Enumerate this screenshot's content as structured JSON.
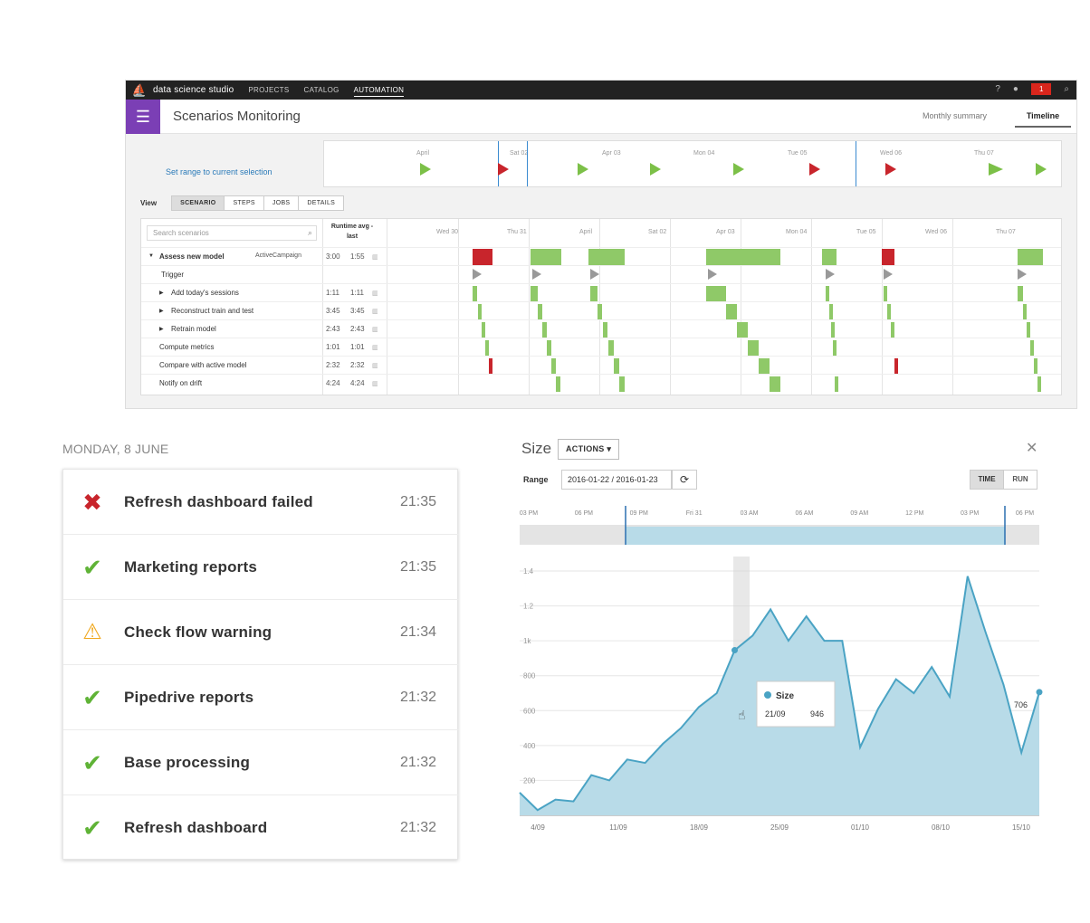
{
  "app": {
    "name": "data science studio",
    "nav": [
      "PROJECTS",
      "CATALOG",
      "AUTOMATION"
    ],
    "notification_count": "1",
    "page_title": "Scenarios Monitoring",
    "tabs": [
      "Monthly summary",
      "Timeline"
    ],
    "range_link": "Set range to current selection",
    "range_ticks": [
      "April",
      "Sat 02",
      "Apr 03",
      "Mon 04",
      "Tue 05",
      "Wed 06",
      "Thu 07"
    ],
    "view_label": "View",
    "view_buttons": [
      "SCENARIO",
      "STEPS",
      "JOBS",
      "DETAILS"
    ],
    "search_placeholder": "Search scenarios",
    "runtime_header": "Runtime avg - last",
    "grid_ticks": [
      "Wed 30",
      "Thu 31",
      "April",
      "Sat 02",
      "Apr 03",
      "Mon 04",
      "Tue 05",
      "Wed 06",
      "Thu 07"
    ],
    "rows": [
      {
        "name": "Assess new model",
        "tag": "ActiveCampaign",
        "avg": "3:00",
        "last": "1:55"
      },
      {
        "name": "Trigger",
        "tag": "",
        "avg": "",
        "last": ""
      },
      {
        "name": "Add today's sessions",
        "tag": "",
        "avg": "1:11",
        "last": "1:11"
      },
      {
        "name": "Reconstruct train and test",
        "tag": "",
        "avg": "3:45",
        "last": "3:45"
      },
      {
        "name": "Retrain model",
        "tag": "",
        "avg": "2:43",
        "last": "2:43"
      },
      {
        "name": "Compute metrics",
        "tag": "",
        "avg": "1:01",
        "last": "1:01"
      },
      {
        "name": "Compare with active model",
        "tag": "",
        "avg": "2:32",
        "last": "2:32"
      },
      {
        "name": "Notify on drift",
        "tag": "",
        "avg": "4:24",
        "last": "4:24"
      }
    ]
  },
  "notifications": {
    "date": "MONDAY, 8 JUNE",
    "items": [
      {
        "status": "fail",
        "icon": "cross-icon",
        "title": "Refresh dashboard failed",
        "time": "21:35"
      },
      {
        "status": "ok",
        "icon": "check-icon",
        "title": "Marketing reports",
        "time": "21:35"
      },
      {
        "status": "warn",
        "icon": "warning-icon",
        "title": "Check flow warning",
        "time": "21:34"
      },
      {
        "status": "ok",
        "icon": "check-icon",
        "title": "Pipedrive reports",
        "time": "21:32"
      },
      {
        "status": "ok",
        "icon": "check-icon",
        "title": "Base processing",
        "time": "21:32"
      },
      {
        "status": "ok",
        "icon": "check-icon",
        "title": "Refresh dashboard",
        "time": "21:32"
      }
    ],
    "colors": {
      "ok": "#5fb336",
      "fail": "#c8252c",
      "warn": "#f0a81f"
    }
  },
  "size_panel": {
    "title": "Size",
    "actions_label": "ACTIONS ▾",
    "range_label": "Range",
    "range_value": "2016-01-22 / 2016-01-23",
    "time_label": "TIME",
    "run_label": "RUN",
    "navigator_ticks": [
      "03 PM",
      "06 PM",
      "09 PM",
      "Fri 31",
      "03 AM",
      "06 AM",
      "09 AM",
      "12 PM",
      "03 PM",
      "06 PM"
    ],
    "tooltip": {
      "series": "Size",
      "date": "21/09",
      "value": "946"
    },
    "last_value_label": "706"
  },
  "chart_data": {
    "type": "area",
    "series": [
      {
        "name": "Size"
      }
    ],
    "x": [
      "01/09",
      "02/09",
      "03/09",
      "04/09",
      "05/09",
      "07/09",
      "09/09",
      "11/09",
      "13/09",
      "15/09",
      "17/09",
      "19/09",
      "21/09",
      "23/09",
      "25/09",
      "27/09",
      "29/09",
      "30/09",
      "01/10",
      "02/10",
      "03/10",
      "05/10",
      "06/10",
      "08/10",
      "10/10",
      "12/10",
      "13/10",
      "14/10",
      "15/10",
      "16/10"
    ],
    "values": [
      130,
      30,
      90,
      80,
      230,
      200,
      320,
      300,
      410,
      500,
      620,
      700,
      946,
      1030,
      1180,
      1000,
      1140,
      1000,
      1000,
      390,
      610,
      780,
      700,
      850,
      680,
      1370,
      1050,
      750,
      360,
      706
    ],
    "xticks": [
      "4/09",
      "11/09",
      "18/09",
      "25/09",
      "01/10",
      "08/10",
      "15/10"
    ],
    "yticks": [
      "200",
      "400",
      "600",
      "800",
      "1k",
      "1.2",
      "1.4"
    ],
    "ylim": [
      0,
      1400
    ],
    "color": "#4aa3c4",
    "fill": "#b8dbe8",
    "grid": true
  }
}
